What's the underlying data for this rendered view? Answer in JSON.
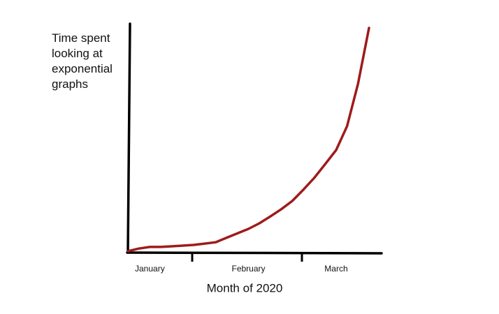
{
  "chart_data": {
    "type": "line",
    "y_label": "Time spent looking at exponential graphs",
    "x_label": "Month of 2020",
    "categories": [
      null,
      null,
      "January",
      null,
      null,
      null,
      null,
      null,
      null,
      null,
      null,
      "February",
      null,
      null,
      null,
      null,
      null,
      null,
      null,
      "March",
      null,
      null,
      null
    ],
    "values": [
      0,
      1.2,
      1.9,
      1.9,
      2.2,
      2.5,
      2.8,
      3.4,
      4,
      6,
      8,
      10,
      12.5,
      15.6,
      18.8,
      22.5,
      27.5,
      32.8,
      39,
      45.3,
      56,
      75,
      100
    ],
    "color": "#9e1b1b",
    "ylim": [
      0,
      100
    ]
  }
}
